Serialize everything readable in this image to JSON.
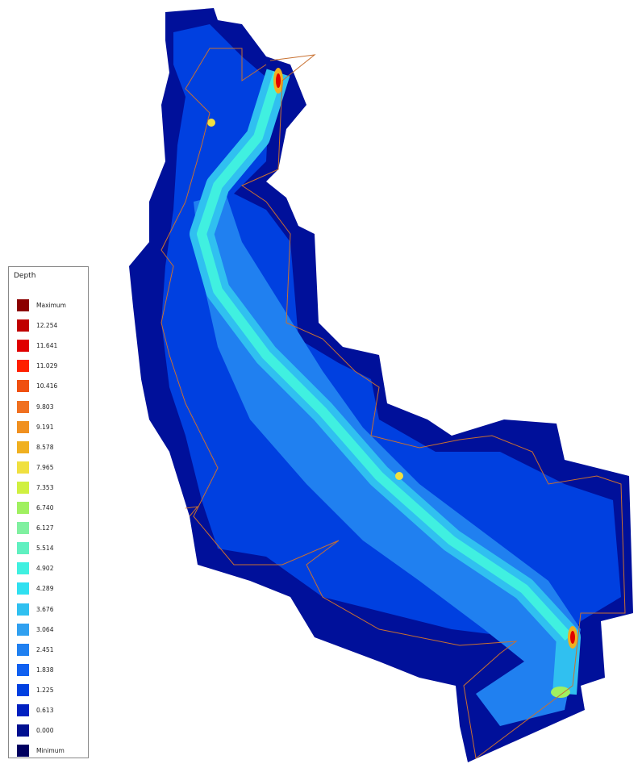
{
  "legend": {
    "title": "Depth",
    "items": [
      {
        "label": "Maximum",
        "color": "#8b0000"
      },
      {
        "label": "12.254",
        "color": "#c00000"
      },
      {
        "label": "11.641",
        "color": "#e00000"
      },
      {
        "label": "11.029",
        "color": "#ff2000"
      },
      {
        "label": "10.416",
        "color": "#f05010"
      },
      {
        "label": "9.803",
        "color": "#f07020"
      },
      {
        "label": "9.191",
        "color": "#f09020"
      },
      {
        "label": "8.578",
        "color": "#f0b020"
      },
      {
        "label": "7.965",
        "color": "#f0e040"
      },
      {
        "label": "7.353",
        "color": "#d0f040"
      },
      {
        "label": "6.740",
        "color": "#a0f060"
      },
      {
        "label": "6.127",
        "color": "#80f0a0"
      },
      {
        "label": "5.514",
        "color": "#60f0c0"
      },
      {
        "label": "4.902",
        "color": "#40f0e0"
      },
      {
        "label": "4.289",
        "color": "#30e0f0"
      },
      {
        "label": "3.676",
        "color": "#30c0f0"
      },
      {
        "label": "3.064",
        "color": "#30a0f0"
      },
      {
        "label": "2.451",
        "color": "#2080f0"
      },
      {
        "label": "1.838",
        "color": "#1060f0"
      },
      {
        "label": "1.225",
        "color": "#0040e0"
      },
      {
        "label": "0.613",
        "color": "#0020c0"
      },
      {
        "label": "0.000",
        "color": "#001090"
      },
      {
        "label": "Minimum",
        "color": "#000060"
      }
    ]
  }
}
